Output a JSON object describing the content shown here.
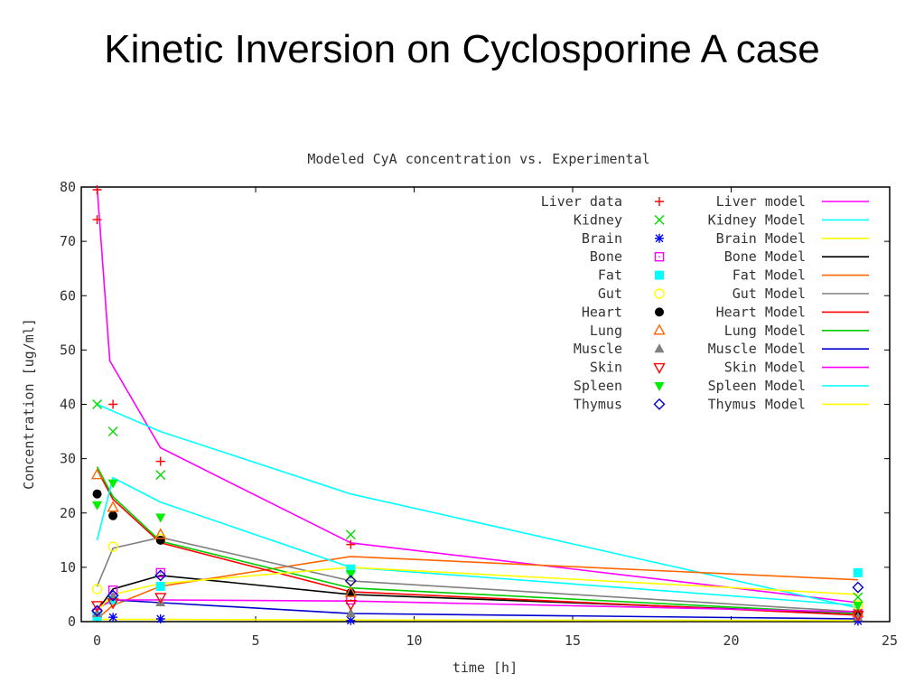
{
  "slide": {
    "title": "Kinetic Inversion on Cyclosporine A case"
  },
  "chart_data": {
    "type": "line",
    "title": "Modeled CyA concentration vs. Experimental",
    "xlabel": "time [h]",
    "ylabel": "Concentration [ug/ml]",
    "xlim": [
      -0.5,
      25
    ],
    "ylim": [
      0,
      80
    ],
    "xticks": [
      0,
      5,
      10,
      15,
      20,
      25
    ],
    "yticks": [
      0,
      10,
      20,
      30,
      40,
      50,
      60,
      70,
      80
    ],
    "grid": false,
    "legend_position": "top-right",
    "data_series": [
      {
        "name": "Liver data",
        "marker": "plus",
        "color": "#ff0000",
        "points": [
          [
            0,
            79.5
          ],
          [
            0,
            74
          ],
          [
            0.5,
            40
          ],
          [
            2,
            29.5
          ],
          [
            8,
            14.2
          ],
          [
            24,
            1.5
          ]
        ]
      },
      {
        "name": "Kidney",
        "marker": "x",
        "color": "#00dd00",
        "points": [
          [
            0,
            40
          ],
          [
            0.5,
            35
          ],
          [
            2,
            27
          ],
          [
            8,
            16
          ],
          [
            24,
            4.5
          ]
        ]
      },
      {
        "name": "Brain",
        "marker": "star",
        "color": "#0000ff",
        "points": [
          [
            0,
            1
          ],
          [
            0.5,
            0.8
          ],
          [
            2,
            0.5
          ],
          [
            8,
            0.2
          ],
          [
            24,
            0.1
          ]
        ]
      },
      {
        "name": "Bone",
        "marker": "square-open",
        "color": "#ff00ff",
        "points": [
          [
            0,
            1.5
          ],
          [
            0.5,
            5.8
          ],
          [
            2,
            9
          ],
          [
            8,
            4
          ],
          [
            24,
            1.5
          ]
        ]
      },
      {
        "name": "Fat",
        "marker": "square-filled",
        "color": "#00ffff",
        "points": [
          [
            0,
            1
          ],
          [
            0.5,
            4
          ],
          [
            2,
            6.5
          ],
          [
            8,
            9.7
          ],
          [
            24,
            9
          ]
        ]
      },
      {
        "name": "Gut",
        "marker": "circle-open",
        "color": "#ffff00",
        "points": [
          [
            0,
            6
          ],
          [
            0.5,
            13.8
          ],
          [
            2,
            15.2
          ],
          [
            8,
            7.5
          ],
          [
            24,
            3
          ]
        ]
      },
      {
        "name": "Heart",
        "marker": "circle-filled",
        "color": "#000000",
        "points": [
          [
            0,
            23.5
          ],
          [
            0.5,
            19.5
          ],
          [
            2,
            15
          ],
          [
            8,
            5.3
          ],
          [
            24,
            1.5
          ]
        ]
      },
      {
        "name": "Lung",
        "marker": "triangle-open",
        "color": "#ff6600",
        "points": [
          [
            0,
            27
          ],
          [
            0.5,
            21
          ],
          [
            2,
            16
          ],
          [
            8,
            5.3
          ],
          [
            24,
            1.6
          ]
        ]
      },
      {
        "name": "Muscle",
        "marker": "triangle-filled",
        "color": "#808080",
        "points": [
          [
            0,
            1.5
          ],
          [
            0.5,
            4.5
          ],
          [
            2,
            3.5
          ],
          [
            8,
            1.5
          ],
          [
            24,
            0.8
          ]
        ]
      },
      {
        "name": "Skin",
        "marker": "triangle-down-open",
        "color": "#ff0000",
        "points": [
          [
            0,
            3
          ],
          [
            0.5,
            3.5
          ],
          [
            2,
            4.5
          ],
          [
            8,
            3.2
          ],
          [
            24,
            1.2
          ]
        ]
      },
      {
        "name": "Spleen",
        "marker": "triangle-down-filled",
        "color": "#00ee00",
        "points": [
          [
            0,
            21.5
          ],
          [
            0.5,
            25.5
          ],
          [
            2,
            19.2
          ],
          [
            8,
            8.8
          ],
          [
            24,
            3
          ]
        ]
      },
      {
        "name": "Thymus",
        "marker": "diamond-open",
        "color": "#0000cc",
        "points": [
          [
            0,
            2
          ],
          [
            0.5,
            4.8
          ],
          [
            2,
            8.5
          ],
          [
            8,
            7.5
          ],
          [
            24,
            6.3
          ]
        ]
      }
    ],
    "model_series": [
      {
        "name": "Liver model",
        "color": "#ff00ff",
        "points": [
          [
            0,
            80
          ],
          [
            0.4,
            48
          ],
          [
            2,
            32
          ],
          [
            8,
            14.5
          ],
          [
            24,
            3.5
          ]
        ]
      },
      {
        "name": "Kidney Model",
        "color": "#00ffff",
        "points": [
          [
            0,
            40
          ],
          [
            2,
            35
          ],
          [
            8,
            23.5
          ],
          [
            24,
            2.5
          ]
        ]
      },
      {
        "name": "Brain Model",
        "color": "#ffff00",
        "points": [
          [
            0,
            0.4
          ],
          [
            2,
            0.4
          ],
          [
            8,
            0.3
          ],
          [
            24,
            0.2
          ]
        ]
      },
      {
        "name": "Bone Model",
        "color": "#000000",
        "points": [
          [
            0,
            2
          ],
          [
            0.5,
            6
          ],
          [
            2,
            8.5
          ],
          [
            8,
            5
          ],
          [
            24,
            1.5
          ]
        ]
      },
      {
        "name": "Fat Model",
        "color": "#ff6600",
        "points": [
          [
            0,
            0.5
          ],
          [
            0.5,
            3
          ],
          [
            2,
            6.5
          ],
          [
            8,
            12
          ],
          [
            24,
            7.7
          ]
        ]
      },
      {
        "name": "Gut Model",
        "color": "#808080",
        "points": [
          [
            0,
            6.5
          ],
          [
            0.5,
            13.5
          ],
          [
            2,
            15.5
          ],
          [
            8,
            7.5
          ],
          [
            24,
            1.8
          ]
        ]
      },
      {
        "name": "Heart Model",
        "color": "#ff0000",
        "points": [
          [
            0,
            28
          ],
          [
            0.5,
            22.5
          ],
          [
            2,
            14.5
          ],
          [
            8,
            5.5
          ],
          [
            24,
            1.2
          ]
        ]
      },
      {
        "name": "Lung Model",
        "color": "#00cc00",
        "points": [
          [
            0,
            28.5
          ],
          [
            0.5,
            23
          ],
          [
            2,
            14.8
          ],
          [
            8,
            6.2
          ],
          [
            24,
            1.5
          ]
        ]
      },
      {
        "name": "Muscle Model",
        "color": "#0000cc",
        "points": [
          [
            0,
            2.5
          ],
          [
            0.5,
            4
          ],
          [
            2,
            3.5
          ],
          [
            8,
            1.5
          ],
          [
            24,
            0.5
          ]
        ]
      },
      {
        "name": "Skin Model",
        "color": "#ff00ff",
        "points": [
          [
            0,
            2.5
          ],
          [
            0.5,
            4
          ],
          [
            2,
            4
          ],
          [
            8,
            3.8
          ],
          [
            24,
            1.8
          ]
        ]
      },
      {
        "name": "Spleen Model",
        "color": "#00ffff",
        "points": [
          [
            0,
            15
          ],
          [
            0.5,
            26.5
          ],
          [
            2,
            22
          ],
          [
            8,
            10
          ],
          [
            24,
            3
          ]
        ]
      },
      {
        "name": "Thymus Model",
        "color": "#ffff00",
        "points": [
          [
            0,
            2
          ],
          [
            0.5,
            5
          ],
          [
            2,
            7
          ],
          [
            8,
            10
          ],
          [
            24,
            5
          ]
        ]
      }
    ]
  }
}
